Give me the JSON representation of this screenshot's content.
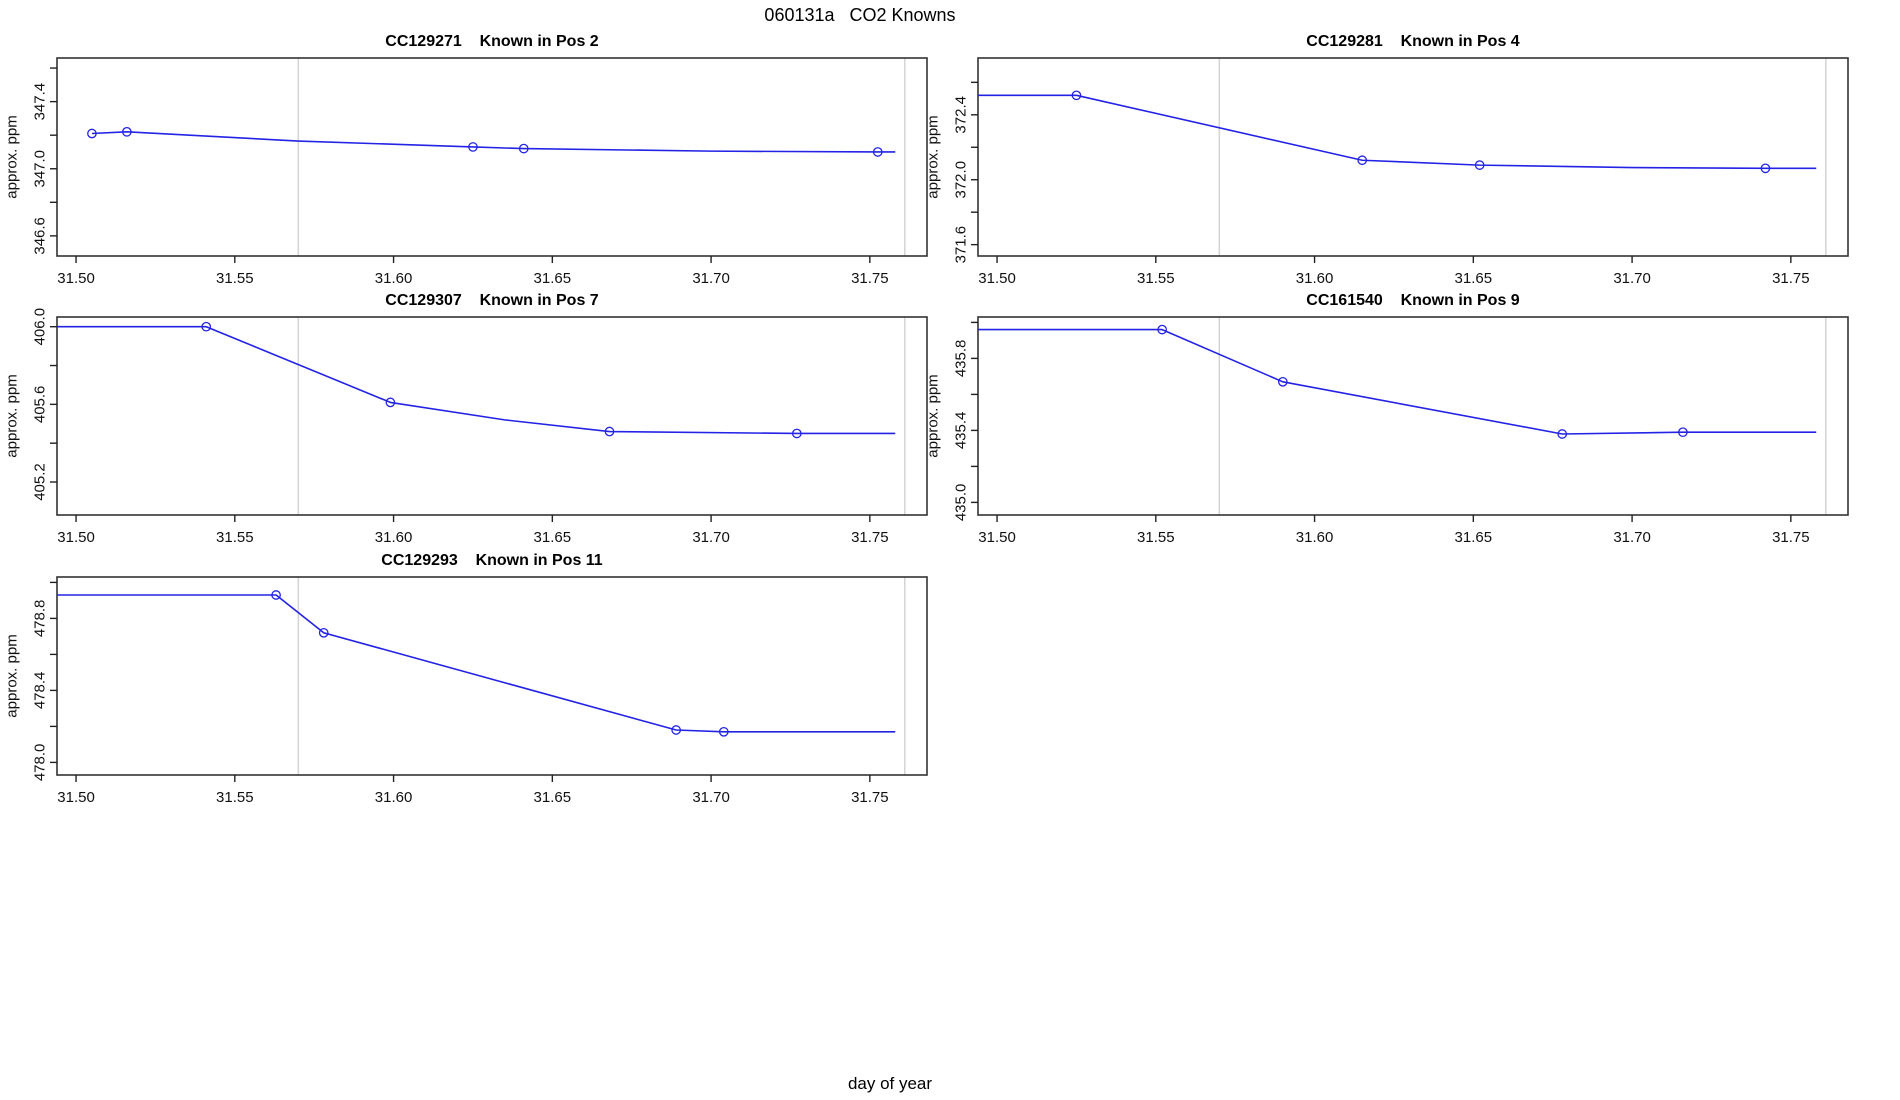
{
  "figure": {
    "title": "060131a   CO2 Knowns",
    "xlabel": "day of year",
    "line_color": "#2323e6",
    "marker_color": "#2323e6",
    "frame_color": "#333333",
    "reference_line_color": "#d4d4d4"
  },
  "chart_data": [
    {
      "type": "line",
      "title": "CC129271    Known in Pos 2",
      "cylinder_id": "CC129271",
      "position_label": "Known in Pos 2",
      "ylabel": "approx. ppm",
      "xlim": [
        31.494,
        31.768
      ],
      "ylim": [
        346.48,
        347.66
      ],
      "xtick_values": [
        31.5,
        31.55,
        31.6,
        31.65,
        31.7,
        31.75
      ],
      "xtick_labels": [
        "31.50",
        "31.55",
        "31.60",
        "31.65",
        "31.70",
        "31.75"
      ],
      "ytick_values": [
        346.6,
        346.8,
        347.0,
        347.2,
        347.4,
        347.6
      ],
      "ytick_labels": [
        "346.6",
        "",
        "347.0",
        "",
        "347.4",
        ""
      ],
      "vlines": [
        31.57,
        31.761
      ],
      "line": {
        "x": [
          31.505,
          31.516,
          31.57,
          31.625,
          31.641,
          31.7,
          31.7525,
          31.758
        ],
        "y": [
          347.21,
          347.22,
          347.165,
          347.13,
          347.12,
          347.105,
          347.1,
          347.1
        ]
      },
      "points": {
        "x": [
          31.505,
          31.516,
          31.625,
          31.641,
          31.7525
        ],
        "y": [
          347.21,
          347.22,
          347.13,
          347.12,
          347.1
        ]
      }
    },
    {
      "type": "line",
      "title": "CC129281    Known in Pos 4",
      "cylinder_id": "CC129281",
      "position_label": "Known in Pos 4",
      "ylabel": "approx. ppm",
      "xlim": [
        31.494,
        31.768
      ],
      "ylim": [
        371.53,
        372.75
      ],
      "xtick_values": [
        31.5,
        31.55,
        31.6,
        31.65,
        31.7,
        31.75
      ],
      "xtick_labels": [
        "31.50",
        "31.55",
        "31.60",
        "31.65",
        "31.70",
        "31.75"
      ],
      "ytick_values": [
        371.6,
        371.8,
        372.0,
        372.2,
        372.4,
        372.6
      ],
      "ytick_labels": [
        "371.6",
        "",
        "372.0",
        "",
        "372.4",
        ""
      ],
      "vlines": [
        31.57,
        31.761
      ],
      "line": {
        "x": [
          31.494,
          31.525,
          31.615,
          31.652,
          31.7,
          31.742,
          31.758
        ],
        "y": [
          372.52,
          372.52,
          372.12,
          372.09,
          372.075,
          372.07,
          372.07
        ]
      },
      "points": {
        "x": [
          31.525,
          31.615,
          31.652,
          31.742
        ],
        "y": [
          372.52,
          372.12,
          372.09,
          372.07
        ]
      }
    },
    {
      "type": "line",
      "title": "CC129307    Known in Pos 7",
      "cylinder_id": "CC129307",
      "position_label": "Known in Pos 7",
      "ylabel": "approx. ppm",
      "xlim": [
        31.494,
        31.768
      ],
      "ylim": [
        405.03,
        406.05
      ],
      "xtick_values": [
        31.5,
        31.55,
        31.6,
        31.65,
        31.7,
        31.75
      ],
      "xtick_labels": [
        "31.50",
        "31.55",
        "31.60",
        "31.65",
        "31.70",
        "31.75"
      ],
      "ytick_values": [
        405.2,
        405.4,
        405.6,
        405.8,
        406.0
      ],
      "ytick_labels": [
        "405.2",
        "",
        "405.6",
        "",
        "406.0"
      ],
      "vlines": [
        31.57,
        31.761
      ],
      "line": {
        "x": [
          31.494,
          31.541,
          31.599,
          31.635,
          31.668,
          31.727,
          31.758
        ],
        "y": [
          406.0,
          406.0,
          405.61,
          405.52,
          405.46,
          405.45,
          405.45
        ]
      },
      "points": {
        "x": [
          31.541,
          31.599,
          31.668,
          31.727
        ],
        "y": [
          406.0,
          405.61,
          405.46,
          405.45
        ]
      }
    },
    {
      "type": "line",
      "title": "CC161540    Known in Pos 9",
      "cylinder_id": "CC161540",
      "position_label": "Known in Pos 9",
      "ylabel": "approx. ppm",
      "xlim": [
        31.494,
        31.768
      ],
      "ylim": [
        434.93,
        436.03
      ],
      "xtick_values": [
        31.5,
        31.55,
        31.6,
        31.65,
        31.7,
        31.75
      ],
      "xtick_labels": [
        "31.50",
        "31.55",
        "31.60",
        "31.65",
        "31.70",
        "31.75"
      ],
      "ytick_values": [
        435.0,
        435.2,
        435.4,
        435.6,
        435.8,
        436.0
      ],
      "ytick_labels": [
        "435.0",
        "",
        "435.4",
        "",
        "435.8",
        ""
      ],
      "vlines": [
        31.57,
        31.761
      ],
      "line": {
        "x": [
          31.494,
          31.552,
          31.59,
          31.678,
          31.716,
          31.758
        ],
        "y": [
          435.96,
          435.96,
          435.67,
          435.38,
          435.39,
          435.39
        ]
      },
      "points": {
        "x": [
          31.552,
          31.59,
          31.678,
          31.716
        ],
        "y": [
          435.96,
          435.67,
          435.38,
          435.39
        ]
      }
    },
    {
      "type": "line",
      "title": "CC129293    Known in Pos 11",
      "cylinder_id": "CC129293",
      "position_label": "Known in Pos 11",
      "ylabel": "approx. ppm",
      "xlim": [
        31.494,
        31.768
      ],
      "ylim": [
        477.93,
        479.03
      ],
      "xtick_values": [
        31.5,
        31.55,
        31.6,
        31.65,
        31.7,
        31.75
      ],
      "xtick_labels": [
        "31.50",
        "31.55",
        "31.60",
        "31.65",
        "31.70",
        "31.75"
      ],
      "ytick_values": [
        478.0,
        478.2,
        478.4,
        478.6,
        478.8,
        479.0
      ],
      "ytick_labels": [
        "478.0",
        "",
        "478.4",
        "",
        "478.8",
        ""
      ],
      "vlines": [
        31.57,
        31.761
      ],
      "line": {
        "x": [
          31.494,
          31.563,
          31.578,
          31.689,
          31.704,
          31.758
        ],
        "y": [
          478.93,
          478.93,
          478.72,
          478.18,
          478.17,
          478.17
        ]
      },
      "points": {
        "x": [
          31.563,
          31.578,
          31.689,
          31.704
        ],
        "y": [
          478.93,
          478.72,
          478.18,
          478.17
        ]
      }
    }
  ]
}
